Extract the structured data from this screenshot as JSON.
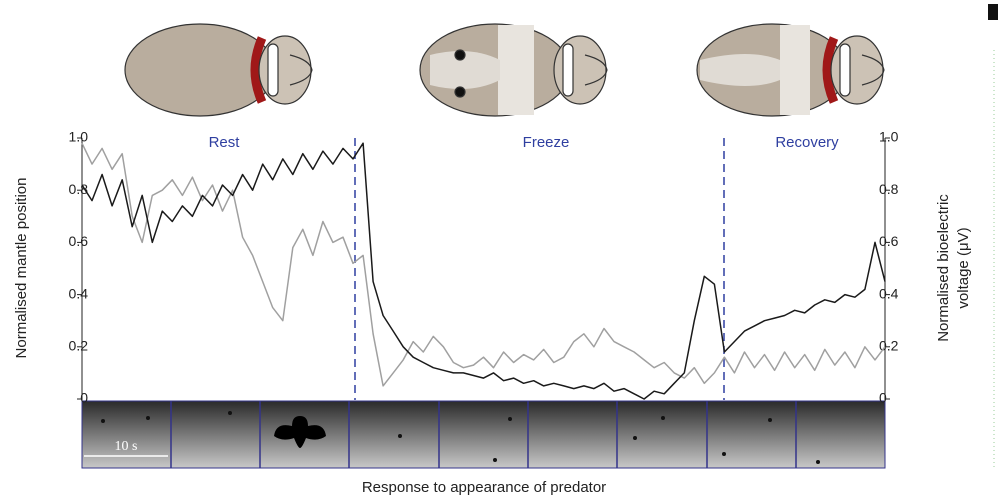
{
  "chart_data": {
    "type": "line",
    "ylabel": "Normalised mantle position",
    "y2label": [
      "Normalised bioelectric",
      "voltage (μV)"
    ],
    "xlabel": "Response to appearance of predator",
    "annotations": [
      "Rest",
      "Freeze",
      "Recovery"
    ],
    "scale_bar_label": "10 s",
    "ylim": [
      0,
      1
    ],
    "yticks": [
      0,
      0.2,
      0.4,
      0.6,
      0.8,
      {
        "value": 1,
        "label": "1.0"
      }
    ],
    "y2lim": [
      0,
      1
    ],
    "y2ticks": [
      0,
      0.2,
      0.4,
      0.6,
      0.8,
      {
        "value": 1,
        "label": "1.0"
      }
    ],
    "series": [
      {
        "color": "#1a1a1a",
        "values": [
          0.82,
          0.76,
          0.86,
          0.74,
          0.84,
          0.66,
          0.78,
          0.6,
          0.72,
          0.68,
          0.74,
          0.7,
          0.78,
          0.74,
          0.82,
          0.78,
          0.86,
          0.8,
          0.9,
          0.84,
          0.92,
          0.86,
          0.94,
          0.88,
          0.95,
          0.9,
          0.96,
          0.92,
          0.98,
          0.45,
          0.32,
          0.26,
          0.2,
          0.16,
          0.14,
          0.12,
          0.11,
          0.1,
          0.1,
          0.09,
          0.08,
          0.1,
          0.07,
          0.08,
          0.06,
          0.07,
          0.05,
          0.06,
          0.05,
          0.04,
          0.05,
          0.04,
          0.06,
          0.03,
          0.04,
          0.02,
          0.0,
          0.03,
          0.02,
          0.06,
          0.1,
          0.3,
          0.47,
          0.44,
          0.18,
          0.22,
          0.26,
          0.28,
          0.3,
          0.31,
          0.32,
          0.34,
          0.33,
          0.36,
          0.38,
          0.37,
          0.4,
          0.39,
          0.42,
          0.6,
          0.45
        ]
      },
      {
        "color": "#a0a0a0",
        "axis": "y2",
        "values": [
          0.98,
          0.9,
          0.96,
          0.88,
          0.94,
          0.7,
          0.6,
          0.78,
          0.8,
          0.84,
          0.78,
          0.85,
          0.76,
          0.82,
          0.72,
          0.8,
          0.62,
          0.55,
          0.45,
          0.35,
          0.3,
          0.58,
          0.65,
          0.55,
          0.68,
          0.6,
          0.62,
          0.52,
          0.55,
          0.25,
          0.05,
          0.1,
          0.15,
          0.22,
          0.18,
          0.24,
          0.2,
          0.14,
          0.12,
          0.13,
          0.16,
          0.12,
          0.18,
          0.14,
          0.17,
          0.15,
          0.19,
          0.14,
          0.16,
          0.22,
          0.25,
          0.2,
          0.27,
          0.22,
          0.2,
          0.18,
          0.15,
          0.12,
          0.14,
          0.1,
          0.08,
          0.12,
          0.06,
          0.1,
          0.16,
          0.1,
          0.18,
          0.12,
          0.17,
          0.11,
          0.18,
          0.12,
          0.17,
          0.11,
          0.19,
          0.13,
          0.18,
          0.12,
          0.2,
          0.15,
          0.2
        ]
      }
    ]
  }
}
